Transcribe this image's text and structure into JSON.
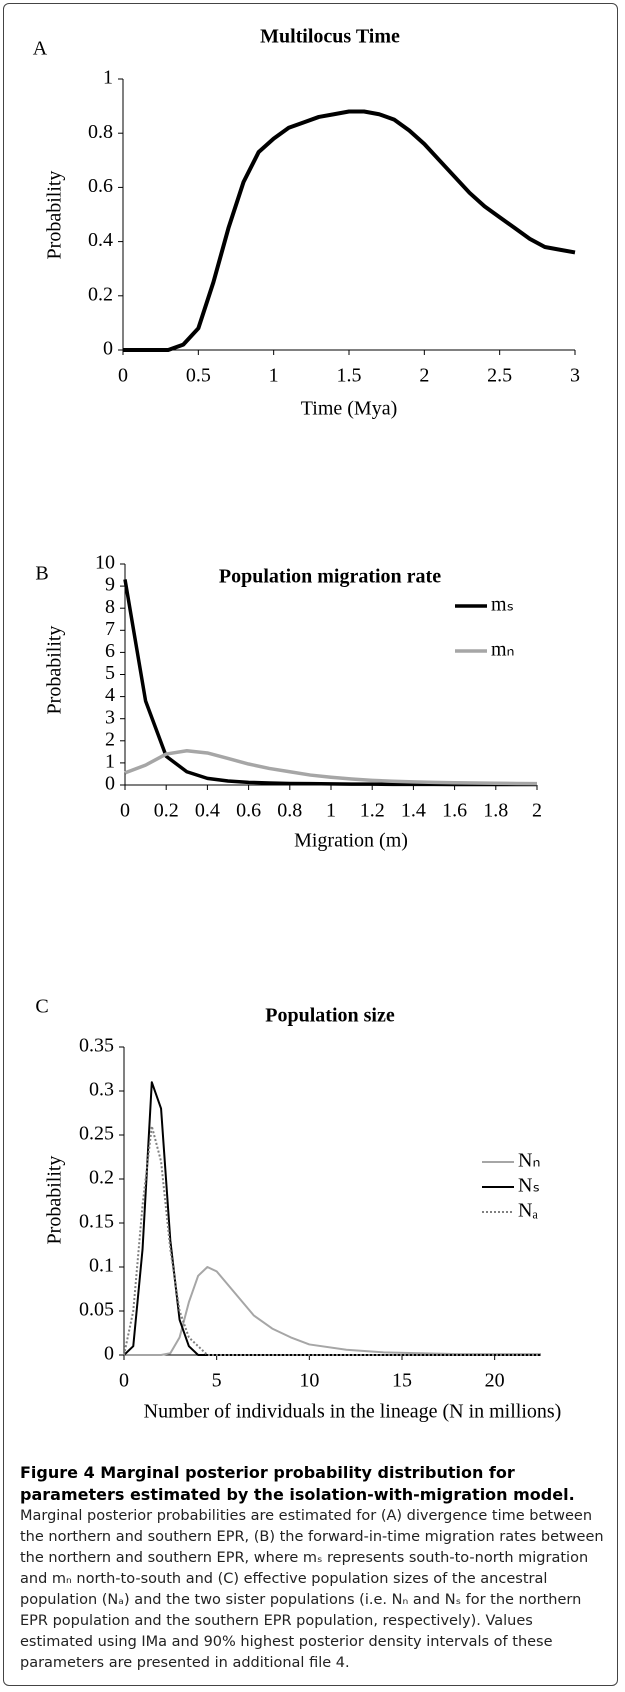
{
  "chart_data": [
    {
      "type": "line",
      "panel": "A",
      "title": "Multilocus Time",
      "xlabel": "Time (Mya)",
      "ylabel": "Probability",
      "x": [
        0,
        0.1,
        0.2,
        0.3,
        0.4,
        0.5,
        0.6,
        0.7,
        0.8,
        0.9,
        1.0,
        1.1,
        1.2,
        1.3,
        1.4,
        1.5,
        1.6,
        1.7,
        1.8,
        1.9,
        2.0,
        2.1,
        2.2,
        2.3,
        2.4,
        2.5,
        2.6,
        2.7,
        2.8,
        2.9,
        3.0
      ],
      "series": [
        {
          "color": "#000000",
          "values": [
            0,
            0,
            0,
            0,
            0.02,
            0.08,
            0.25,
            0.45,
            0.62,
            0.73,
            0.78,
            0.82,
            0.84,
            0.86,
            0.87,
            0.88,
            0.88,
            0.87,
            0.85,
            0.81,
            0.76,
            0.7,
            0.64,
            0.58,
            0.53,
            0.49,
            0.45,
            0.41,
            0.38,
            0.37,
            0.36
          ]
        }
      ],
      "xlim": [
        0,
        3
      ],
      "xticks": [
        0,
        0.5,
        1,
        1.5,
        2,
        2.5,
        3
      ],
      "ylim": [
        0,
        1
      ],
      "yticks": [
        0,
        0.2,
        0.4,
        0.6,
        0.8,
        1
      ]
    },
    {
      "type": "line",
      "panel": "B",
      "title": "Population migration rate",
      "xlabel": "Migration (m)",
      "ylabel": "Probability",
      "x": [
        0,
        0.1,
        0.2,
        0.3,
        0.4,
        0.5,
        0.6,
        0.7,
        0.8,
        0.9,
        1.0,
        1.1,
        1.2,
        1.3,
        1.4,
        1.5,
        1.6,
        1.7,
        1.8,
        1.9,
        2.0
      ],
      "series": [
        {
          "name": "mₛ",
          "color": "#000000",
          "values": [
            9.3,
            3.8,
            1.3,
            0.6,
            0.3,
            0.18,
            0.12,
            0.09,
            0.07,
            0.06,
            0.05,
            0.04,
            0.04,
            0.03,
            0.03,
            0.03,
            0.02,
            0.02,
            0.02,
            0.02,
            0.02
          ]
        },
        {
          "name": "mₙ",
          "color": "#a6a6a6",
          "values": [
            0.55,
            0.9,
            1.4,
            1.55,
            1.45,
            1.2,
            0.95,
            0.75,
            0.6,
            0.45,
            0.35,
            0.27,
            0.21,
            0.17,
            0.14,
            0.12,
            0.1,
            0.09,
            0.08,
            0.07,
            0.06
          ]
        }
      ],
      "xlim": [
        0,
        2
      ],
      "xticks": [
        0,
        0.2,
        0.4,
        0.6,
        0.8,
        1,
        1.2,
        1.4,
        1.6,
        1.8,
        2
      ],
      "ylim": [
        0,
        10
      ],
      "yticks": [
        0,
        1,
        2,
        3,
        4,
        5,
        6,
        7,
        8,
        9,
        10
      ],
      "legend": "top-right"
    },
    {
      "type": "line",
      "panel": "C",
      "title": "Population size",
      "xlabel": "Number of individuals in the lineage (N in millions)",
      "ylabel": "Probability",
      "x": [
        0,
        0.5,
        1,
        1.5,
        2,
        2.5,
        3,
        3.5,
        4,
        4.5,
        5,
        6,
        7,
        8,
        9,
        10,
        12,
        14,
        16,
        18,
        20,
        22.5
      ],
      "series": [
        {
          "name": "Nₙ",
          "color": "#a6a6a6",
          "values": [
            0,
            0,
            0,
            0,
            0,
            0.002,
            0.02,
            0.06,
            0.09,
            0.1,
            0.095,
            0.07,
            0.045,
            0.03,
            0.02,
            0.012,
            0.006,
            0.003,
            0.002,
            0.001,
            0.001,
            0.001
          ]
        },
        {
          "name": "Nₛ",
          "color": "#000000",
          "values": [
            0,
            0.01,
            0.12,
            0.31,
            0.28,
            0.13,
            0.04,
            0.01,
            0,
            0,
            0,
            0,
            0,
            0,
            0,
            0,
            0,
            0,
            0,
            0,
            0,
            0
          ]
        },
        {
          "name": "Nₐ",
          "color": "#808080",
          "dash": "dotted",
          "values": [
            0,
            0.05,
            0.17,
            0.26,
            0.22,
            0.12,
            0.05,
            0.02,
            0.01,
            0,
            0,
            0,
            0,
            0,
            0,
            0,
            0,
            0,
            0,
            0,
            0,
            0
          ]
        }
      ],
      "xlim": [
        0,
        22.5
      ],
      "xticks": [
        0,
        5,
        10,
        15,
        20
      ],
      "ylim": [
        0,
        0.35
      ],
      "yticks": [
        0,
        0.05,
        0.1,
        0.15,
        0.2,
        0.25,
        0.3,
        0.35
      ],
      "legend": "top-right"
    }
  ],
  "caption": {
    "title": "Figure 4 Marginal posterior probability distribution for parameters estimated by the isolation-with-migration model.",
    "text": "Marginal posterior probabilities are estimated for (A) divergence time between the northern and southern EPR, (B) the forward-in-time migration rates between the northern and southern EPR, where mₛ represents south-to-north migration and mₙ north-to-south and (C) effective population sizes of the ancestral population (Nₐ) and the two sister populations (i.e. Nₙ and Nₛ for the northern EPR population and the southern EPR population, respectively). Values estimated using IMa and 90% highest posterior density intervals of these parameters are presented in additional file 4."
  }
}
